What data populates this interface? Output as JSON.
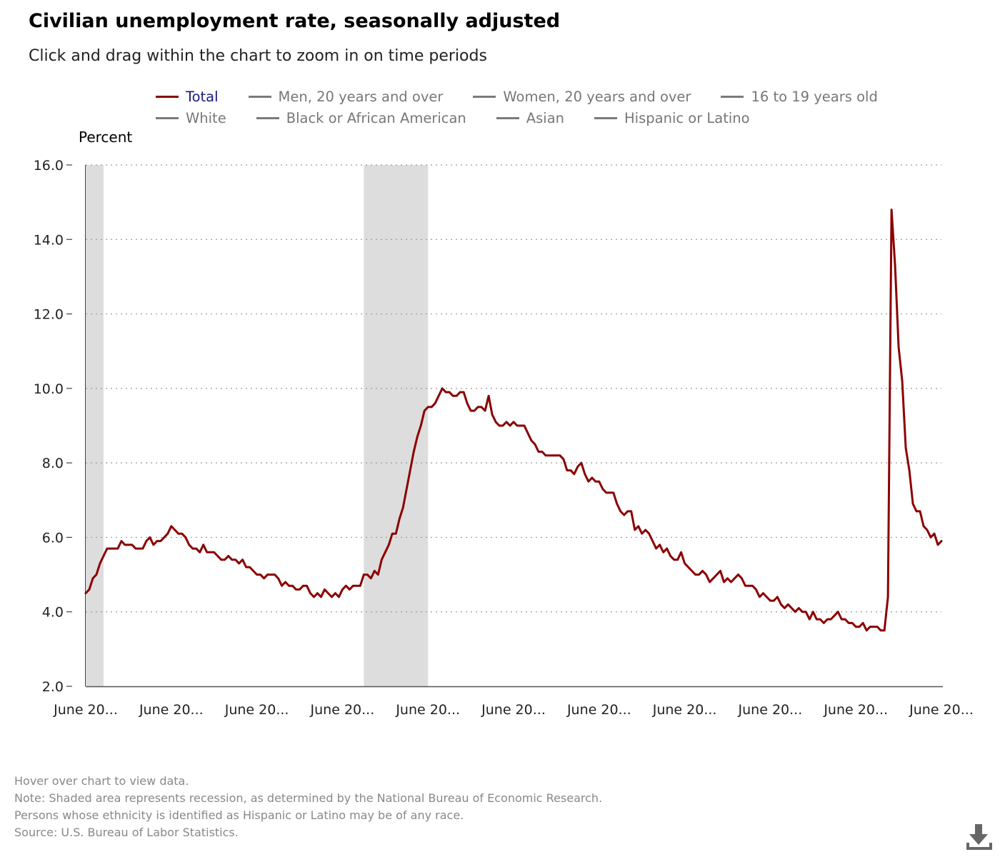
{
  "title": "Civilian unemployment rate, seasonally adjusted",
  "subtitle": "Click and drag within the chart to zoom in on time periods",
  "legend": [
    {
      "label": "Total",
      "active": true
    },
    {
      "label": "Men, 20 years and over",
      "active": false
    },
    {
      "label": "Women, 20 years and over",
      "active": false
    },
    {
      "label": "16 to 19 years old",
      "active": false
    },
    {
      "label": "White",
      "active": false
    },
    {
      "label": "Black or African American",
      "active": false
    },
    {
      "label": "Asian",
      "active": false
    },
    {
      "label": "Hispanic or Latino",
      "active": false
    }
  ],
  "notes": {
    "hover": "Hover over chart to view data.",
    "note": "Note: Shaded area represents recession, as determined by the National Bureau of Economic Research.",
    "ethnicity": "Persons whose ethnicity is identified as Hispanic or Latino may be of any race.",
    "source": "Source: U.S. Bureau of Labor Statistics."
  },
  "icons": {
    "download": "download-icon"
  },
  "colors": {
    "total_series": "#8b0000",
    "recession_shade": "#dddddd",
    "inactive_legend": "#777777",
    "active_legend": "#1a1a80"
  },
  "chart_data": {
    "type": "line",
    "title": "Civilian unemployment rate, seasonally adjusted",
    "ylabel": "Percent",
    "xlabel": "",
    "ylim": [
      2.0,
      16.0
    ],
    "y_ticks": [
      "16.0",
      "14.0",
      "12.0",
      "10.0",
      "8.0",
      "6.0",
      "4.0",
      "2.0"
    ],
    "x_tick_labels": [
      "June 20...",
      "June 20...",
      "June 20...",
      "June 20...",
      "June 20...",
      "June 20...",
      "June 20...",
      "June 20...",
      "June 20...",
      "June 20...",
      "June 20..."
    ],
    "x_range_months": [
      "2001-06",
      "2021-06"
    ],
    "grid": "horizontal dotted",
    "legend_placement": "top",
    "recessions": [
      {
        "start": "2001-03",
        "end": "2001-11"
      },
      {
        "start": "2007-12",
        "end": "2009-06"
      }
    ],
    "series": [
      {
        "name": "Total",
        "start": "2001-06",
        "frequency": "monthly",
        "values": [
          4.5,
          4.6,
          4.9,
          5.0,
          5.3,
          5.5,
          5.7,
          5.7,
          5.7,
          5.7,
          5.9,
          5.8,
          5.8,
          5.8,
          5.7,
          5.7,
          5.7,
          5.9,
          6.0,
          5.8,
          5.9,
          5.9,
          6.0,
          6.1,
          6.3,
          6.2,
          6.1,
          6.1,
          6.0,
          5.8,
          5.7,
          5.7,
          5.6,
          5.8,
          5.6,
          5.6,
          5.6,
          5.5,
          5.4,
          5.4,
          5.5,
          5.4,
          5.4,
          5.3,
          5.4,
          5.2,
          5.2,
          5.1,
          5.0,
          5.0,
          4.9,
          5.0,
          5.0,
          5.0,
          4.9,
          4.7,
          4.8,
          4.7,
          4.7,
          4.6,
          4.6,
          4.7,
          4.7,
          4.5,
          4.4,
          4.5,
          4.4,
          4.6,
          4.5,
          4.4,
          4.5,
          4.4,
          4.6,
          4.7,
          4.6,
          4.7,
          4.7,
          4.7,
          5.0,
          5.0,
          4.9,
          5.1,
          5.0,
          5.4,
          5.6,
          5.8,
          6.1,
          6.1,
          6.5,
          6.8,
          7.3,
          7.8,
          8.3,
          8.7,
          9.0,
          9.4,
          9.5,
          9.5,
          9.6,
          9.8,
          10.0,
          9.9,
          9.9,
          9.8,
          9.8,
          9.9,
          9.9,
          9.6,
          9.4,
          9.4,
          9.5,
          9.5,
          9.4,
          9.8,
          9.3,
          9.1,
          9.0,
          9.0,
          9.1,
          9.0,
          9.1,
          9.0,
          9.0,
          9.0,
          8.8,
          8.6,
          8.5,
          8.3,
          8.3,
          8.2,
          8.2,
          8.2,
          8.2,
          8.2,
          8.1,
          7.8,
          7.8,
          7.7,
          7.9,
          8.0,
          7.7,
          7.5,
          7.6,
          7.5,
          7.5,
          7.3,
          7.2,
          7.2,
          7.2,
          6.9,
          6.7,
          6.6,
          6.7,
          6.7,
          6.2,
          6.3,
          6.1,
          6.2,
          6.1,
          5.9,
          5.7,
          5.8,
          5.6,
          5.7,
          5.5,
          5.4,
          5.4,
          5.6,
          5.3,
          5.2,
          5.1,
          5.0,
          5.0,
          5.1,
          5.0,
          4.8,
          4.9,
          5.0,
          5.1,
          4.8,
          4.9,
          4.8,
          4.9,
          5.0,
          4.9,
          4.7,
          4.7,
          4.7,
          4.6,
          4.4,
          4.5,
          4.4,
          4.3,
          4.3,
          4.4,
          4.2,
          4.1,
          4.2,
          4.1,
          4.0,
          4.1,
          4.0,
          4.0,
          3.8,
          4.0,
          3.8,
          3.8,
          3.7,
          3.8,
          3.8,
          3.9,
          4.0,
          3.8,
          3.8,
          3.7,
          3.7,
          3.6,
          3.6,
          3.7,
          3.5,
          3.6,
          3.6,
          3.6,
          3.5,
          3.5,
          4.4,
          14.8,
          13.3,
          11.1,
          10.2,
          8.4,
          7.8,
          6.9,
          6.7,
          6.7,
          6.3,
          6.2,
          6.0,
          6.1,
          5.8,
          5.9
        ]
      }
    ]
  }
}
